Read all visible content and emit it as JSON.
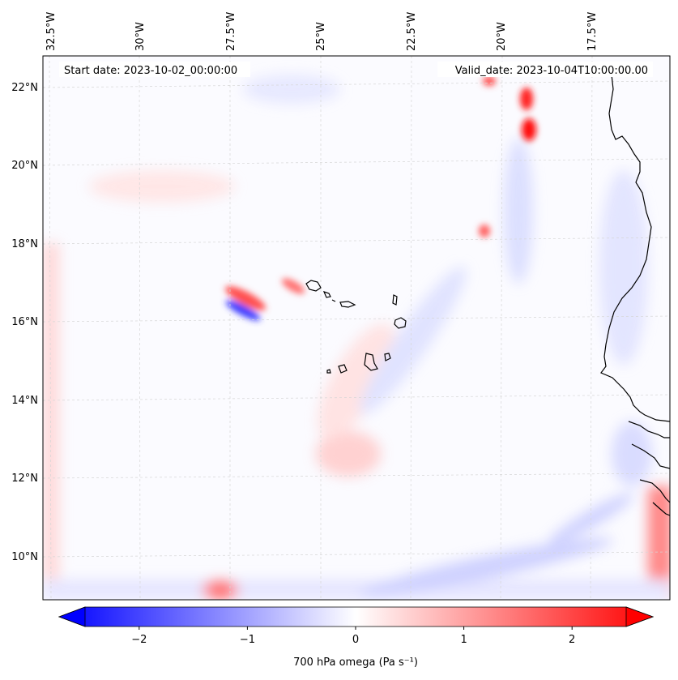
{
  "map": {
    "start_label": "Start date: 2023-10-02_00:00:00",
    "valid_label": "Valid_date: 2023-10-04T10:00:00.00",
    "lon_ticks": [
      "32.5°W",
      "30°W",
      "27.5°W",
      "25°W",
      "22.5°W",
      "20°W",
      "17.5°W"
    ],
    "lat_ticks": [
      "22°N",
      "20°N",
      "18°N",
      "16°N",
      "14°N",
      "12°N",
      "10°N"
    ],
    "gridlines": true,
    "coastlines": true
  },
  "colorbar": {
    "label": "700 hPa omega (Pa s⁻¹)",
    "ticks": [
      "−2",
      "−1",
      "0",
      "1",
      "2"
    ],
    "tick_values": [
      -2,
      -1,
      0,
      1,
      2
    ],
    "range": [
      -2.5,
      2.5
    ],
    "extend": "both",
    "cmap_colors": [
      "#0000ff",
      "#ffffff",
      "#ff0000"
    ]
  }
}
